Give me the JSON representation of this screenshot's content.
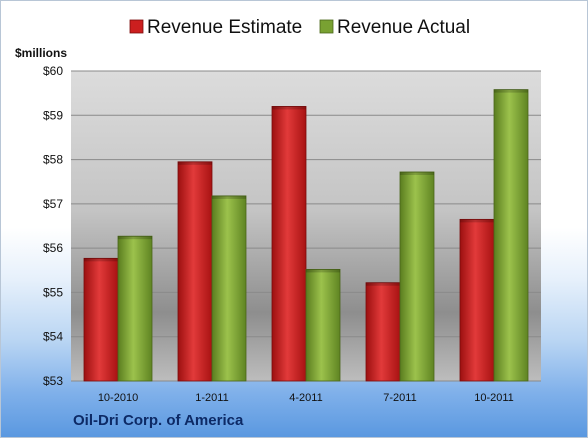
{
  "chart_data": {
    "type": "bar",
    "unit_label": "$millions",
    "categories": [
      "10-2010",
      "1-2011",
      "4-2011",
      "7-2011",
      "10-2011"
    ],
    "series": [
      {
        "name": "Revenue Estimate",
        "color": "#cc1f1f",
        "values": [
          55.77,
          57.95,
          59.2,
          55.22,
          56.65
        ]
      },
      {
        "name": "Revenue Actual",
        "color": "#79a132",
        "values": [
          56.27,
          57.18,
          55.52,
          57.72,
          59.58
        ]
      }
    ],
    "ylim": [
      53,
      60
    ],
    "yticks": [
      53,
      54,
      55,
      56,
      57,
      58,
      59,
      60
    ],
    "ytick_labels": [
      "$53",
      "$54",
      "$55",
      "$56",
      "$57",
      "$58",
      "$59",
      "$60"
    ],
    "grid": true,
    "legend_position": "top"
  },
  "footer": {
    "company": "Oil-Dri Corp. of America"
  }
}
